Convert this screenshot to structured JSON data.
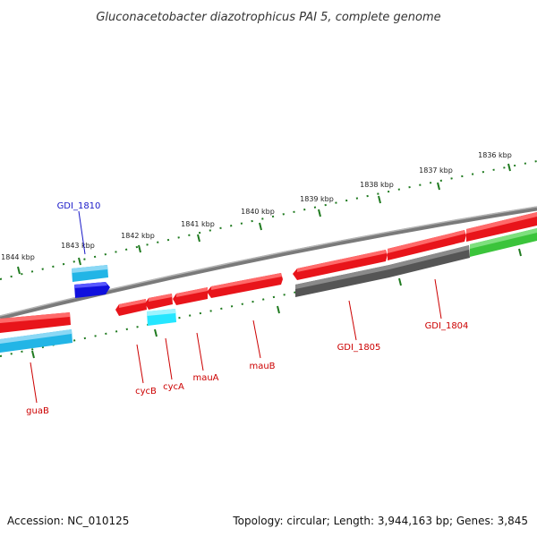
{
  "title": "Gluconacetobacter diazotrophicus PAI 5, complete genome",
  "footer": {
    "accession": "Accession: NC_010125",
    "summary": "Topology: circular; Length: 3,944,163 bp; Genes: 3,845"
  },
  "ticks": [
    "1836 kbp",
    "1837 kbp",
    "1838 kbp",
    "1839 kbp",
    "1840 kbp",
    "1841 kbp",
    "1842 kbp",
    "1843 kbp",
    "1844 kbp"
  ],
  "genes": [
    "GDI_1810",
    "guaB",
    "cycB",
    "cycA",
    "mauA",
    "mauB",
    "GDI_1805",
    "GDI_1804"
  ],
  "colors": {
    "forward_cds": "#e8141a",
    "reverse_cds": "#22b5e6",
    "dark_cds": "#555555",
    "rna": "#3bc43b",
    "navy": "#1010dd",
    "cyan": "#25e6ff",
    "backbone": "#7a7a7a",
    "tick": "#1f7a1f",
    "label_red": "#cc0000",
    "label_blue": "#1a1ac8"
  }
}
